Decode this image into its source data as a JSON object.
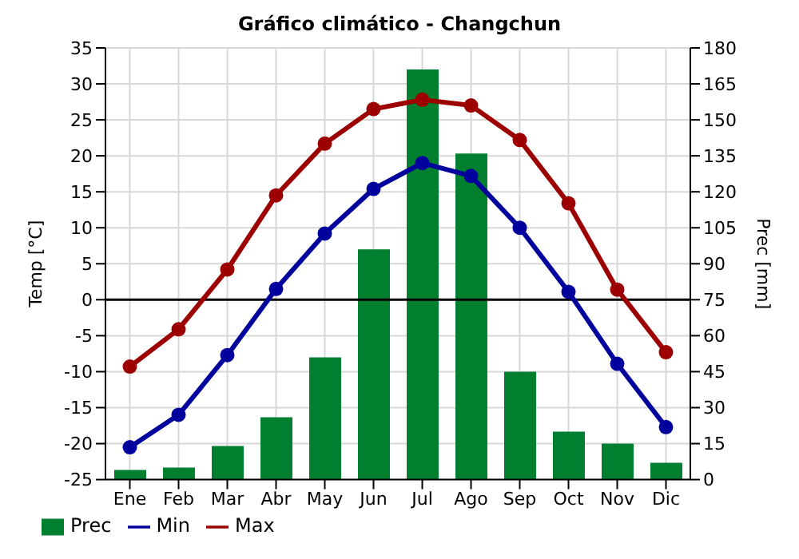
{
  "chart_data": {
    "type": "bar",
    "title": "Gráfico climático - Changchun",
    "ylabel": "Temp [°C]",
    "y2label": "Prec [mm]",
    "categories": [
      "Ene",
      "Feb",
      "Mar",
      "Abr",
      "May",
      "Jun",
      "Jul",
      "Ago",
      "Sep",
      "Oct",
      "Nov",
      "Dic"
    ],
    "series": [
      {
        "name": "Prec",
        "axis": "y2",
        "color": "#007f2e",
        "values": [
          4,
          5,
          14,
          26,
          51,
          96,
          171,
          136,
          45,
          20,
          15,
          7
        ]
      },
      {
        "name": "Min",
        "type": "line",
        "color": "#00009c",
        "values": [
          -20.5,
          -16,
          -7.7,
          1.5,
          9.2,
          15.4,
          19,
          17.2,
          10,
          1.1,
          -8.9,
          -17.7
        ]
      },
      {
        "name": "Max",
        "type": "line",
        "color": "#9c0000",
        "values": [
          -9.3,
          -4.1,
          4.2,
          14.5,
          21.7,
          26.5,
          27.8,
          27,
          22.2,
          13.4,
          1.4,
          -7.3
        ]
      }
    ],
    "ylim": [
      -25,
      35
    ],
    "yticks": [
      -25,
      -20,
      -15,
      -10,
      -5,
      0,
      5,
      10,
      15,
      20,
      25,
      30,
      35
    ],
    "y2lim": [
      0,
      180
    ],
    "y2ticks": [
      0,
      15,
      30,
      45,
      60,
      75,
      90,
      105,
      120,
      135,
      150,
      165,
      180
    ],
    "ref_lines": [
      {
        "axis": "y",
        "value": 0,
        "color": "#000000"
      }
    ],
    "grid": true,
    "legend": "bottom left",
    "marker": "circle"
  }
}
